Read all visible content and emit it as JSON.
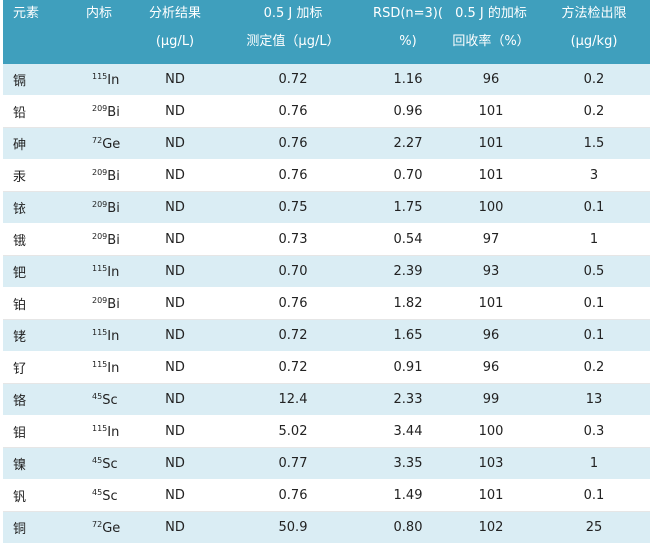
{
  "headers": {
    "element": "元素",
    "internal_standard": "内标",
    "result_line1": "分析结果",
    "result_line2": "(μg/L)",
    "spike_measured_line1": "0.5 J 加标",
    "spike_measured_line2": "测定值（μg/L）",
    "rsd_line1": "RSD(n=3)(",
    "rsd_line2": "%)",
    "recovery_line1": "0.5 J 的加标",
    "recovery_line2": "回收率（%）",
    "mdl_line1": "方法检出限",
    "mdl_line2": "(μg/kg)"
  },
  "rows": [
    {
      "element": "镉",
      "is_mass": "115",
      "is_symbol": "In",
      "result": "ND",
      "measured": "0.72",
      "rsd": "1.16",
      "recovery": "96",
      "mdl": "0.2"
    },
    {
      "element": "铅",
      "is_mass": "209",
      "is_symbol": "Bi",
      "result": "ND",
      "measured": "0.76",
      "rsd": "0.96",
      "recovery": "101",
      "mdl": "0.2"
    },
    {
      "element": "砷",
      "is_mass": "72",
      "is_symbol": "Ge",
      "result": "ND",
      "measured": "0.76",
      "rsd": "2.27",
      "recovery": "101",
      "mdl": "1.5"
    },
    {
      "element": "汞",
      "is_mass": "209",
      "is_symbol": "Bi",
      "result": "ND",
      "measured": "0.76",
      "rsd": "0.70",
      "recovery": "101",
      "mdl": "3"
    },
    {
      "element": "铱",
      "is_mass": "209",
      "is_symbol": "Bi",
      "result": "ND",
      "measured": "0.75",
      "rsd": "1.75",
      "recovery": "100",
      "mdl": "0.1"
    },
    {
      "element": "锇",
      "is_mass": "209",
      "is_symbol": "Bi",
      "result": "ND",
      "measured": "0.73",
      "rsd": "0.54",
      "recovery": "97",
      "mdl": "1"
    },
    {
      "element": "钯",
      "is_mass": "115",
      "is_symbol": "In",
      "result": "ND",
      "measured": "0.70",
      "rsd": "2.39",
      "recovery": "93",
      "mdl": "0.5"
    },
    {
      "element": "铂",
      "is_mass": "209",
      "is_symbol": "Bi",
      "result": "ND",
      "measured": "0.76",
      "rsd": "1.82",
      "recovery": "101",
      "mdl": "0.1"
    },
    {
      "element": "铑",
      "is_mass": "115",
      "is_symbol": "In",
      "result": "ND",
      "measured": "0.72",
      "rsd": "1.65",
      "recovery": "96",
      "mdl": "0.1"
    },
    {
      "element": "钌",
      "is_mass": "115",
      "is_symbol": "In",
      "result": "ND",
      "measured": "0.72",
      "rsd": "0.91",
      "recovery": "96",
      "mdl": "0.2"
    },
    {
      "element": "铬",
      "is_mass": "45",
      "is_symbol": "Sc",
      "result": "ND",
      "measured": "12.4",
      "rsd": "2.33",
      "recovery": "99",
      "mdl": "13"
    },
    {
      "element": "钼",
      "is_mass": "115",
      "is_symbol": "In",
      "result": "ND",
      "measured": "5.02",
      "rsd": "3.44",
      "recovery": "100",
      "mdl": "0.3"
    },
    {
      "element": "镍",
      "is_mass": "45",
      "is_symbol": "Sc",
      "result": "ND",
      "measured": "0.77",
      "rsd": "3.35",
      "recovery": "103",
      "mdl": "1"
    },
    {
      "element": "钒",
      "is_mass": "45",
      "is_symbol": "Sc",
      "result": "ND",
      "measured": "0.76",
      "rsd": "1.49",
      "recovery": "101",
      "mdl": "0.1"
    },
    {
      "element": "铜",
      "is_mass": "72",
      "is_symbol": "Ge",
      "result": "ND",
      "measured": "50.9",
      "rsd": "0.80",
      "recovery": "102",
      "mdl": "25"
    }
  ]
}
